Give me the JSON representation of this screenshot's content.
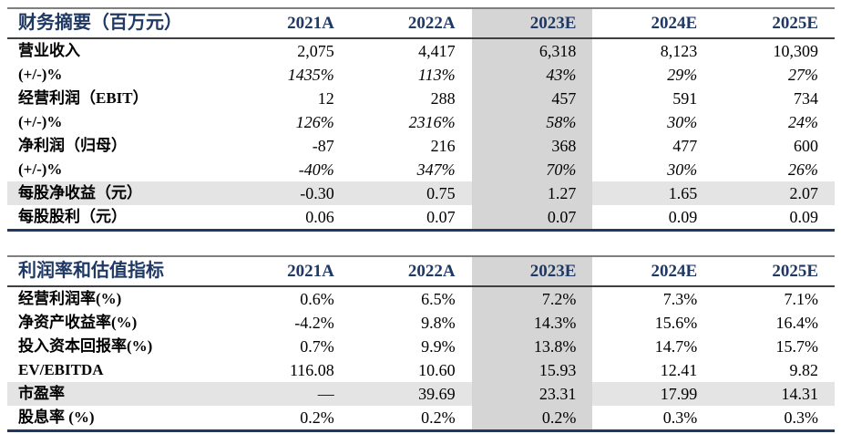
{
  "colors": {
    "accent_navy": "#1F3864",
    "top_border_gray": "#7F7F7F",
    "header_underline": "#404040",
    "highlight_column_gray": "#D5D5D5",
    "highlight_row_gray": "#E4E4E4"
  },
  "highlight_column_index": 2,
  "tables": [
    {
      "title": "财务摘要（百万元）",
      "years": [
        "2021A",
        "2022A",
        "2023E",
        "2024E",
        "2025E"
      ],
      "rows": [
        {
          "label": "营业收入",
          "values": [
            "2,075",
            "4,417",
            "6,318",
            "8,123",
            "10,309"
          ],
          "italic": false,
          "shaded": false
        },
        {
          "label": "(+/-)%",
          "values": [
            "1435%",
            "113%",
            "43%",
            "29%",
            "27%"
          ],
          "italic": true,
          "shaded": false
        },
        {
          "label": "经营利润（EBIT）",
          "values": [
            "12",
            "288",
            "457",
            "591",
            "734"
          ],
          "italic": false,
          "shaded": false
        },
        {
          "label": "(+/-)%",
          "values": [
            "126%",
            "2316%",
            "58%",
            "30%",
            "24%"
          ],
          "italic": true,
          "shaded": false
        },
        {
          "label": "净利润（归母）",
          "values": [
            "-87",
            "216",
            "368",
            "477",
            "600"
          ],
          "italic": false,
          "shaded": false
        },
        {
          "label": "(+/-)%",
          "values": [
            "-40%",
            "347%",
            "70%",
            "30%",
            "26%"
          ],
          "italic": true,
          "shaded": false
        },
        {
          "label": "每股净收益（元）",
          "values": [
            "-0.30",
            "0.75",
            "1.27",
            "1.65",
            "2.07"
          ],
          "italic": false,
          "shaded": true
        },
        {
          "label": "每股股利（元）",
          "values": [
            "0.06",
            "0.07",
            "0.07",
            "0.09",
            "0.09"
          ],
          "italic": false,
          "shaded": false
        }
      ]
    },
    {
      "title": "利润率和估值指标",
      "years": [
        "2021A",
        "2022A",
        "2023E",
        "2024E",
        "2025E"
      ],
      "rows": [
        {
          "label": "经营利润率(%)",
          "values": [
            "0.6%",
            "6.5%",
            "7.2%",
            "7.3%",
            "7.1%"
          ],
          "italic": false,
          "shaded": false
        },
        {
          "label": "净资产收益率(%)",
          "values": [
            "-4.2%",
            "9.8%",
            "14.3%",
            "15.6%",
            "16.4%"
          ],
          "italic": false,
          "shaded": false
        },
        {
          "label": "投入资本回报率(%)",
          "values": [
            "0.7%",
            "9.9%",
            "13.8%",
            "14.7%",
            "15.7%"
          ],
          "italic": false,
          "shaded": false
        },
        {
          "label": "EV/EBITDA",
          "values": [
            "116.08",
            "10.60",
            "15.93",
            "12.41",
            "9.82"
          ],
          "italic": false,
          "shaded": false
        },
        {
          "label": "市盈率",
          "values": [
            "—",
            "39.69",
            "23.31",
            "17.99",
            "14.31"
          ],
          "italic": false,
          "shaded": true
        },
        {
          "label": "股息率 (%)",
          "values": [
            "0.2%",
            "0.2%",
            "0.2%",
            "0.3%",
            "0.3%"
          ],
          "italic": false,
          "shaded": false
        }
      ]
    }
  ]
}
